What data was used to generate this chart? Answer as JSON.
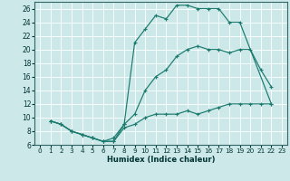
{
  "xlabel": "Humidex (Indice chaleur)",
  "bg_color": "#cce8e8",
  "grid_color": "#ffffff",
  "line_color": "#1a7a6e",
  "xlim": [
    -0.5,
    23.5
  ],
  "ylim": [
    6,
    27
  ],
  "xticks": [
    0,
    1,
    2,
    3,
    4,
    5,
    6,
    7,
    8,
    9,
    10,
    11,
    12,
    13,
    14,
    15,
    16,
    17,
    18,
    19,
    20,
    21,
    22,
    23
  ],
  "yticks": [
    6,
    8,
    10,
    12,
    14,
    16,
    18,
    20,
    22,
    24,
    26
  ],
  "lines": [
    {
      "x": [
        1,
        2,
        3,
        4,
        5,
        6,
        7,
        8,
        9,
        10,
        11,
        12,
        13,
        14,
        15,
        16,
        17,
        18,
        19,
        22
      ],
      "y": [
        9.5,
        9,
        8,
        7.5,
        7,
        6.5,
        7,
        9,
        21,
        23,
        25,
        24.5,
        26.5,
        26.5,
        26,
        26,
        26,
        24,
        24,
        12
      ]
    },
    {
      "x": [
        1,
        2,
        3,
        4,
        5,
        6,
        7,
        8,
        9,
        10,
        11,
        12,
        13,
        14,
        15,
        16,
        17,
        18,
        19,
        20,
        21,
        22
      ],
      "y": [
        9.5,
        9,
        8,
        7.5,
        7,
        6.5,
        6.5,
        8.5,
        9,
        10,
        10.5,
        10.5,
        10.5,
        11,
        10.5,
        11,
        11.5,
        12,
        12,
        12,
        12,
        12
      ]
    },
    {
      "x": [
        1,
        2,
        3,
        4,
        5,
        6,
        7,
        8,
        9,
        10,
        11,
        12,
        13,
        14,
        15,
        16,
        17,
        18,
        19,
        20,
        21,
        22
      ],
      "y": [
        9.5,
        9,
        8,
        7.5,
        7,
        6.5,
        6.5,
        9,
        10.5,
        14,
        16,
        17,
        19,
        20,
        20.5,
        20,
        20,
        19.5,
        20,
        20,
        17,
        14.5
      ]
    }
  ]
}
